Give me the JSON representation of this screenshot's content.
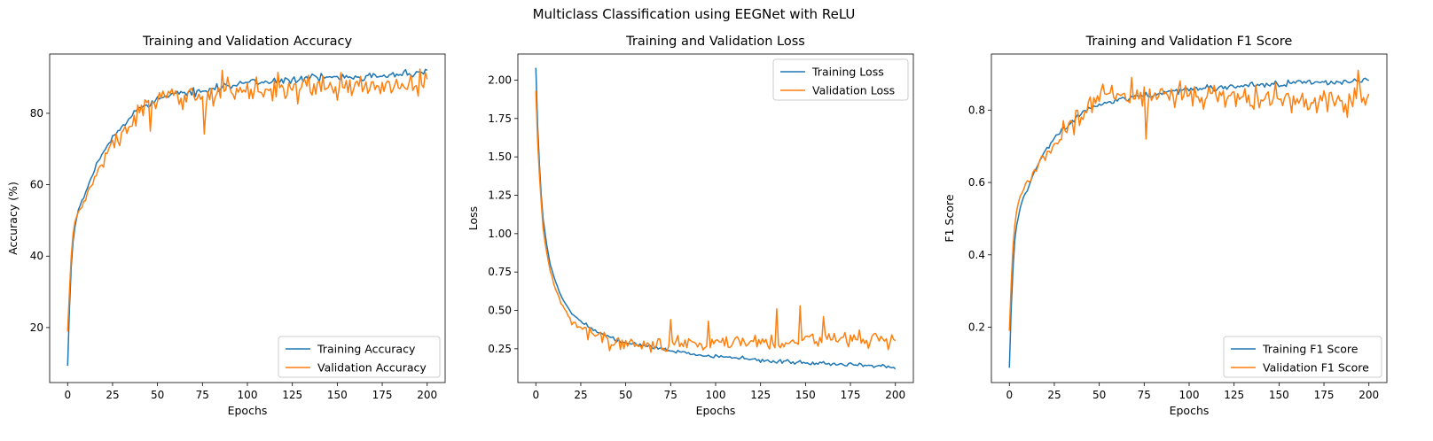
{
  "figure": {
    "suptitle": "Multiclass Classification using EEGNet with ReLU",
    "colors": {
      "training": "#1f77b4",
      "validation": "#ff7f0e"
    }
  },
  "chart_data": [
    {
      "type": "line",
      "title": "Training and Validation Accuracy",
      "xlabel": "Epochs",
      "ylabel": "Accuracy (%)",
      "xlim": [
        -10,
        210
      ],
      "ylim": [
        4.6,
        96.6
      ],
      "xticks": [
        0,
        25,
        50,
        75,
        100,
        125,
        150,
        175,
        200
      ],
      "yticks": [
        20,
        40,
        60,
        80
      ],
      "grid": false,
      "legend_position": "lower-right",
      "series": [
        {
          "name": "Training Accuracy",
          "color": "#1f77b4",
          "x": [
            0,
            1,
            2,
            3,
            4,
            6,
            8,
            10,
            13,
            16,
            20,
            25,
            30,
            35,
            40,
            45,
            50,
            55,
            60,
            70,
            80,
            90,
            100,
            110,
            120,
            130,
            140,
            150,
            160,
            170,
            180,
            190,
            200
          ],
          "y": [
            9.3,
            25,
            37,
            44,
            48,
            53,
            55.5,
            57.5,
            61.5,
            65.5,
            69.5,
            73,
            76,
            79,
            81.5,
            83,
            84,
            84.6,
            85.1,
            86,
            87,
            87.8,
            88.4,
            88.9,
            89.3,
            89.6,
            89.9,
            90.2,
            90.4,
            90.6,
            90.8,
            91,
            91.5
          ],
          "noise": 1.0
        },
        {
          "name": "Validation Accuracy",
          "color": "#ff7f0e",
          "x": [
            0,
            1,
            2,
            3,
            4,
            6,
            8,
            10,
            13,
            16,
            20,
            25,
            30,
            35,
            40,
            45,
            50,
            55,
            60,
            70,
            80,
            90,
            100,
            110,
            120,
            130,
            140,
            150,
            160,
            170,
            180,
            190,
            200
          ],
          "y": [
            18.9,
            30,
            40,
            46,
            49.5,
            52.5,
            54,
            56,
            59.5,
            63,
            67,
            70.5,
            74,
            77,
            80.5,
            82.5,
            83.2,
            83.8,
            84.3,
            85,
            85.6,
            86,
            86.4,
            86.7,
            86.9,
            87.1,
            87.2,
            87.3,
            87.4,
            87.5,
            87.6,
            87.7,
            88
          ],
          "noise": 3.0,
          "spikes": [
            [
              46,
              75.0
            ],
            [
              76,
              74.2
            ],
            [
              86,
              92.0
            ],
            [
              117,
              91.5
            ],
            [
              196,
              92.4
            ]
          ]
        }
      ]
    },
    {
      "type": "line",
      "title": "Training and Validation Loss",
      "xlabel": "Epochs",
      "ylabel": "Loss",
      "xlim": [
        -10,
        210
      ],
      "ylim": [
        0.03,
        2.17
      ],
      "xticks": [
        0,
        25,
        50,
        75,
        100,
        125,
        150,
        175,
        200
      ],
      "yticks": [
        0.25,
        0.5,
        0.75,
        1.0,
        1.25,
        1.5,
        1.75,
        2.0
      ],
      "ytick_labels": [
        "0.25",
        "0.50",
        "0.75",
        "1.00",
        "1.25",
        "1.50",
        "1.75",
        "2.00"
      ],
      "grid": false,
      "legend_position": "upper-right",
      "series": [
        {
          "name": "Training Loss",
          "color": "#1f77b4",
          "x": [
            0,
            1,
            2,
            3,
            4,
            6,
            8,
            10,
            13,
            16,
            20,
            25,
            30,
            35,
            40,
            45,
            50,
            60,
            70,
            80,
            90,
            100,
            110,
            120,
            130,
            140,
            150,
            160,
            170,
            180,
            190,
            200
          ],
          "y": [
            2.08,
            1.7,
            1.45,
            1.25,
            1.1,
            0.93,
            0.8,
            0.72,
            0.62,
            0.55,
            0.48,
            0.43,
            0.39,
            0.36,
            0.33,
            0.31,
            0.29,
            0.27,
            0.25,
            0.23,
            0.21,
            0.2,
            0.19,
            0.18,
            0.17,
            0.165,
            0.16,
            0.155,
            0.15,
            0.145,
            0.14,
            0.13
          ],
          "noise": 0.012
        },
        {
          "name": "Validation Loss",
          "color": "#ff7f0e",
          "x": [
            0,
            1,
            2,
            3,
            4,
            6,
            8,
            10,
            13,
            16,
            20,
            25,
            30,
            35,
            40,
            45,
            50,
            60,
            70,
            80,
            90,
            100,
            110,
            120,
            130,
            140,
            150,
            160,
            170,
            180,
            190,
            200
          ],
          "y": [
            1.93,
            1.6,
            1.38,
            1.2,
            1.04,
            0.88,
            0.76,
            0.67,
            0.57,
            0.5,
            0.44,
            0.39,
            0.35,
            0.32,
            0.3,
            0.29,
            0.285,
            0.28,
            0.28,
            0.285,
            0.29,
            0.29,
            0.3,
            0.3,
            0.3,
            0.3,
            0.31,
            0.31,
            0.31,
            0.31,
            0.32,
            0.3
          ],
          "noise": 0.05,
          "spikes": [
            [
              75,
              0.44
            ],
            [
              96,
              0.43
            ],
            [
              134,
              0.51
            ],
            [
              147,
              0.53
            ],
            [
              160,
              0.46
            ]
          ]
        }
      ]
    },
    {
      "type": "line",
      "title": "Training and Validation F1 Score",
      "xlabel": "Epochs",
      "ylabel": "F1 Score",
      "xlim": [
        -10,
        210
      ],
      "ylim": [
        0.047,
        0.955
      ],
      "xticks": [
        0,
        25,
        50,
        75,
        100,
        125,
        150,
        175,
        200
      ],
      "yticks": [
        0.2,
        0.4,
        0.6,
        0.8
      ],
      "grid": false,
      "legend_position": "lower-right",
      "series": [
        {
          "name": "Training F1 Score",
          "color": "#1f77b4",
          "x": [
            0,
            1,
            2,
            3,
            4,
            6,
            8,
            10,
            13,
            16,
            20,
            25,
            30,
            35,
            40,
            45,
            50,
            55,
            60,
            70,
            80,
            90,
            100,
            110,
            120,
            130,
            140,
            150,
            160,
            170,
            180,
            190,
            200
          ],
          "y": [
            0.088,
            0.25,
            0.36,
            0.44,
            0.48,
            0.53,
            0.56,
            0.58,
            0.62,
            0.65,
            0.69,
            0.72,
            0.75,
            0.77,
            0.79,
            0.805,
            0.815,
            0.82,
            0.825,
            0.835,
            0.845,
            0.852,
            0.857,
            0.861,
            0.864,
            0.867,
            0.87,
            0.872,
            0.874,
            0.876,
            0.878,
            0.88,
            0.885
          ],
          "noise": 0.008
        },
        {
          "name": "Validation F1 Score",
          "color": "#ff7f0e",
          "x": [
            0,
            1,
            2,
            3,
            4,
            6,
            8,
            10,
            13,
            16,
            20,
            25,
            30,
            35,
            40,
            45,
            50,
            55,
            60,
            70,
            80,
            90,
            100,
            110,
            120,
            130,
            140,
            150,
            160,
            170,
            180,
            190,
            200
          ],
          "y": [
            0.19,
            0.32,
            0.42,
            0.48,
            0.52,
            0.56,
            0.585,
            0.6,
            0.625,
            0.65,
            0.68,
            0.7,
            0.73,
            0.76,
            0.79,
            0.82,
            0.835,
            0.84,
            0.842,
            0.843,
            0.843,
            0.843,
            0.842,
            0.84,
            0.838,
            0.835,
            0.833,
            0.832,
            0.83,
            0.83,
            0.83,
            0.83,
            0.825
          ],
          "noise": 0.03,
          "spikes": [
            [
              76,
              0.72
            ],
            [
              68,
              0.89
            ],
            [
              194,
              0.91
            ],
            [
              188,
              0.78
            ]
          ]
        }
      ]
    }
  ]
}
